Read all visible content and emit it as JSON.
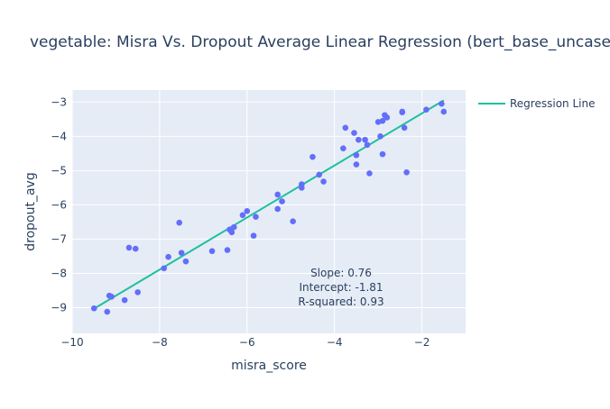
{
  "chart_data": {
    "type": "scatter",
    "title": "vegetable: Misra Vs. Dropout Average Linear Regression (bert_base_uncased)",
    "xlabel": "misra_score",
    "ylabel": "dropout_avg",
    "xlim": [
      -10,
      -1.0
    ],
    "ylim": [
      -9.75,
      -2.65
    ],
    "x_ticks": [
      -10,
      -8,
      -6,
      -4,
      -2
    ],
    "x_tick_labels": [
      "−10",
      "−8",
      "−6",
      "−4",
      "−2"
    ],
    "y_ticks": [
      -9,
      -8,
      -7,
      -6,
      -5,
      -4,
      -3
    ],
    "y_tick_labels": [
      "−9",
      "−8",
      "−7",
      "−6",
      "−5",
      "−4",
      "−3"
    ],
    "grid": true,
    "legend_position": "top-right",
    "colors": {
      "points": "#636efa",
      "line": "#1fbfa0",
      "plot_bg": "#e5ecf6",
      "grid": "#ffffff",
      "text": "#2a3f5f"
    },
    "series": [
      {
        "type": "scatter",
        "x": [
          -9.5,
          -9.2,
          -9.15,
          -9.1,
          -8.8,
          -8.7,
          -8.55,
          -8.5,
          -7.9,
          -7.8,
          -7.55,
          -7.5,
          -7.4,
          -6.8,
          -6.45,
          -6.4,
          -6.35,
          -6.3,
          -6.1,
          -6.0,
          -5.85,
          -5.8,
          -5.3,
          -5.3,
          -5.2,
          -4.95,
          -4.75,
          -4.75,
          -4.5,
          -4.35,
          -4.25,
          -3.8,
          -3.75,
          -3.55,
          -3.5,
          -3.5,
          -3.45,
          -3.3,
          -3.25,
          -3.2,
          -3.0,
          -2.95,
          -2.9,
          -2.9,
          -2.85,
          -2.8,
          -2.45,
          -2.45,
          -2.4,
          -2.35,
          -1.9,
          -1.55,
          -1.5
        ],
        "y": [
          -9.02,
          -9.12,
          -8.65,
          -8.68,
          -8.78,
          -7.25,
          -7.28,
          -8.55,
          -7.85,
          -7.52,
          -6.52,
          -7.4,
          -7.65,
          -7.35,
          -7.32,
          -6.72,
          -6.8,
          -6.65,
          -6.3,
          -6.18,
          -6.9,
          -6.35,
          -5.7,
          -6.12,
          -5.9,
          -6.48,
          -5.4,
          -5.5,
          -4.6,
          -5.12,
          -5.32,
          -4.35,
          -3.75,
          -3.9,
          -4.55,
          -4.82,
          -4.1,
          -4.1,
          -4.25,
          -5.08,
          -3.58,
          -4.0,
          -3.55,
          -4.52,
          -3.38,
          -3.45,
          -3.3,
          -3.28,
          -3.75,
          -5.05,
          -3.22,
          -3.05,
          -3.28
        ]
      },
      {
        "type": "line",
        "name": "Regression Line",
        "x": [
          -9.5,
          -1.5
        ],
        "y": [
          -9.03,
          -2.95
        ]
      }
    ],
    "annotations": [
      "Slope: 0.76",
      "Intercept: -1.81",
      "R-squared: 0.93"
    ]
  }
}
